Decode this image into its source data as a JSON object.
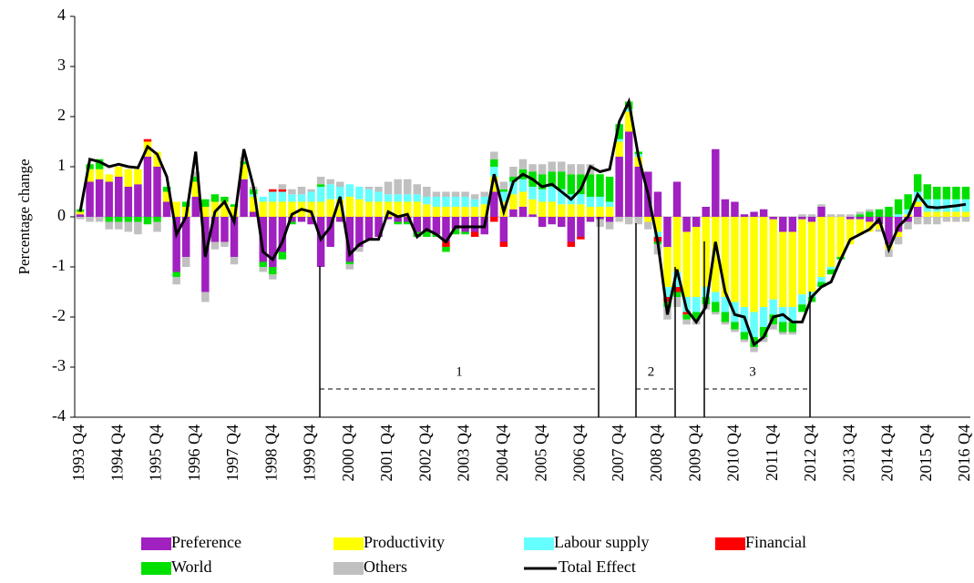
{
  "chart_data": {
    "type": "bar",
    "stacked": true,
    "ylabel": "Percentage change",
    "categories": [
      "1993 Q4",
      null,
      null,
      null,
      "1994 Q4",
      null,
      null,
      null,
      "1995 Q4",
      null,
      null,
      null,
      "1996 Q4",
      null,
      null,
      null,
      "1997 Q4",
      null,
      null,
      null,
      "1998 Q4",
      null,
      null,
      null,
      "1999 Q4",
      null,
      null,
      null,
      "2000 Q4",
      null,
      null,
      null,
      "2001 Q4",
      null,
      null,
      null,
      "2002 Q4",
      null,
      null,
      null,
      "2003 Q4",
      null,
      null,
      null,
      "2004 Q4",
      null,
      null,
      null,
      "2005 Q4",
      null,
      null,
      null,
      "2006 Q4",
      null,
      null,
      null,
      "2007 Q4",
      null,
      null,
      null,
      "2008 Q4",
      null,
      null,
      null,
      "2009 Q4",
      null,
      null,
      null,
      "2010 Q4",
      null,
      null,
      null,
      "2011 Q4",
      null,
      null,
      null,
      "2012 Q4",
      null,
      null,
      null,
      "2013 Q4",
      null,
      null,
      null,
      "2014 Q4",
      null,
      null,
      null,
      "2015 Q4",
      null,
      null,
      null,
      "2016 Q4"
    ],
    "ylim": [
      -4,
      4
    ],
    "yticks": [
      -4,
      -3,
      -2,
      -1,
      0,
      1,
      2,
      3,
      4
    ],
    "series": [
      {
        "name": "Preference",
        "color": "#a020c0",
        "values": [
          0.05,
          0.7,
          0.75,
          0.7,
          0.8,
          0.6,
          0.65,
          1.2,
          1.0,
          0.3,
          -1.1,
          -0.8,
          0.4,
          -1.5,
          -0.5,
          -0.5,
          -0.8,
          0.75,
          0.1,
          -0.9,
          -1.0,
          -0.7,
          -0.1,
          -0.1,
          -0.15,
          -1.0,
          -0.6,
          -0.1,
          -0.9,
          -0.6,
          -0.45,
          -0.4,
          -0.05,
          -0.1,
          -0.1,
          -0.3,
          -0.3,
          -0.35,
          -0.5,
          -0.25,
          -0.3,
          -0.3,
          -0.35,
          0.5,
          -0.5,
          0.15,
          0.2,
          0.05,
          -0.2,
          -0.15,
          -0.2,
          -0.5,
          -0.4,
          -0.1,
          -0.05,
          -0.1,
          1.2,
          1.7,
          1.0,
          0.9,
          0.5,
          -0.6,
          0.7,
          -0.3,
          -0.2,
          0.2,
          1.35,
          0.35,
          0.3,
          0.05,
          0.1,
          0.15,
          -0.05,
          -0.3,
          -0.3,
          -0.05,
          -0.1,
          0.2,
          0.0,
          0.0,
          -0.05,
          -0.05,
          -0.1,
          -0.15,
          -0.55,
          -0.3,
          -0.1,
          0.2,
          0.0,
          0.0,
          0.0,
          0.0,
          0.0
        ]
      },
      {
        "name": "Productivity",
        "color": "#ffff00",
        "values": [
          0.05,
          0.25,
          0.2,
          0.15,
          0.2,
          0.35,
          0.3,
          0.3,
          0.3,
          0.2,
          0.3,
          0.2,
          0.3,
          0.2,
          0.3,
          0.3,
          0.2,
          0.3,
          0.3,
          0.3,
          0.3,
          0.3,
          0.3,
          0.3,
          0.3,
          0.3,
          0.35,
          0.35,
          0.4,
          0.35,
          0.3,
          0.3,
          0.3,
          0.3,
          0.3,
          0.3,
          0.25,
          0.2,
          0.2,
          0.2,
          0.2,
          0.2,
          0.25,
          0.3,
          0.3,
          0.3,
          0.3,
          0.3,
          0.3,
          0.3,
          0.25,
          0.25,
          0.25,
          0.2,
          0.2,
          0.2,
          0.3,
          0.4,
          0.2,
          -0.1,
          -0.3,
          -0.8,
          -1.1,
          -1.3,
          -1.4,
          -1.4,
          -1.5,
          -1.6,
          -1.7,
          -1.8,
          -1.9,
          -1.8,
          -1.6,
          -1.5,
          -1.5,
          -1.5,
          -1.4,
          -1.2,
          -1.0,
          -0.8,
          -0.5,
          -0.3,
          -0.2,
          -0.1,
          -0.1,
          -0.1,
          0.05,
          0.1,
          0.1,
          0.1,
          0.1,
          0.1,
          0.1
        ]
      },
      {
        "name": "Labour supply",
        "color": "#66ffff",
        "values": [
          0,
          0,
          0,
          0,
          0,
          0,
          0,
          0,
          0,
          0,
          0,
          0,
          0,
          0,
          0,
          0,
          0,
          0,
          0.05,
          0.1,
          0.2,
          0.2,
          0.15,
          0.15,
          0.2,
          0.3,
          0.3,
          0.25,
          0.25,
          0.25,
          0.25,
          0.2,
          0.15,
          0.15,
          0.15,
          0.15,
          0.15,
          0.2,
          0.2,
          0.2,
          0.2,
          0.15,
          0.15,
          0.2,
          0.2,
          0.25,
          0.25,
          0.25,
          0.25,
          0.3,
          0.3,
          0.2,
          0.2,
          0.2,
          0.2,
          0.1,
          0.05,
          0.05,
          0.05,
          0.0,
          -0.1,
          -0.2,
          -0.3,
          -0.3,
          -0.3,
          -0.2,
          -0.2,
          -0.3,
          -0.4,
          -0.5,
          -0.5,
          -0.4,
          -0.3,
          -0.3,
          -0.3,
          -0.2,
          -0.1,
          -0.1,
          -0.05,
          0.0,
          0,
          0,
          0,
          0,
          0,
          0.05,
          0.1,
          0.2,
          0.25,
          0.25,
          0.25,
          0.25,
          0.25
        ]
      },
      {
        "name": "Financial",
        "color": "#ff0000",
        "values": [
          0,
          0,
          0,
          0,
          0,
          0,
          0,
          0.05,
          0,
          0,
          0,
          0,
          0,
          0,
          0,
          0,
          0,
          0,
          0,
          0,
          0.05,
          0.05,
          0,
          0,
          0,
          0,
          0,
          0,
          0,
          0,
          0,
          0,
          0,
          0,
          0,
          0,
          0,
          0,
          -0.1,
          0,
          0,
          -0.1,
          0,
          -0.1,
          -0.1,
          0,
          0,
          0,
          0,
          0,
          0,
          -0.1,
          -0.05,
          0,
          0,
          0,
          0,
          0,
          0,
          0,
          -0.1,
          -0.1,
          -0.1,
          -0.05,
          0,
          0,
          0,
          0,
          0,
          0,
          0,
          0,
          0,
          0,
          0,
          0,
          0,
          0,
          0,
          0,
          0,
          0,
          0,
          0,
          0,
          0,
          0,
          0,
          0,
          0,
          0,
          0,
          0
        ]
      },
      {
        "name": "World",
        "color": "#00e000",
        "values": [
          0.05,
          0.1,
          0.2,
          -0.1,
          -0.1,
          -0.1,
          -0.1,
          -0.15,
          -0.1,
          0.1,
          -0.1,
          0.1,
          0.1,
          0.15,
          0.15,
          0.1,
          0.05,
          0.05,
          0.1,
          -0.1,
          -0.15,
          -0.15,
          -0.05,
          0.0,
          0.0,
          0.05,
          0.0,
          0.0,
          -0.05,
          0.0,
          0.0,
          0.0,
          0.0,
          -0.05,
          -0.05,
          -0.1,
          -0.1,
          -0.05,
          -0.1,
          -0.1,
          -0.05,
          0.0,
          0.0,
          0.15,
          0.05,
          0.1,
          0.2,
          0.3,
          0.3,
          0.3,
          0.35,
          0.4,
          0.4,
          0.45,
          0.45,
          0.5,
          0.3,
          0.15,
          0.05,
          0.0,
          -0.05,
          -0.1,
          -0.1,
          -0.1,
          -0.15,
          -0.15,
          -0.2,
          -0.2,
          -0.15,
          -0.15,
          -0.2,
          -0.2,
          -0.2,
          -0.2,
          -0.2,
          -0.15,
          -0.1,
          -0.1,
          -0.1,
          -0.05,
          0.0,
          0.05,
          0.1,
          0.15,
          0.2,
          0.3,
          0.3,
          0.35,
          0.3,
          0.25,
          0.25,
          0.25,
          0.25
        ]
      },
      {
        "name": "Others",
        "color": "#c0c0c0",
        "values": [
          -0.05,
          -0.1,
          -0.1,
          -0.15,
          -0.15,
          -0.2,
          -0.25,
          0.0,
          -0.2,
          0.0,
          -0.15,
          -0.2,
          0.1,
          -0.2,
          -0.15,
          -0.1,
          -0.15,
          0.1,
          0.05,
          -0.1,
          -0.1,
          0.1,
          0.1,
          0.15,
          0.05,
          0.15,
          0.1,
          0.1,
          -0.1,
          -0.1,
          0.05,
          0.1,
          0.25,
          0.3,
          0.3,
          0.2,
          0.2,
          0.1,
          0.1,
          0.1,
          0.1,
          0.1,
          0.1,
          0.15,
          0.15,
          0.2,
          0.2,
          0.15,
          0.2,
          0.2,
          0.2,
          0.2,
          0.2,
          0.2,
          -0.15,
          -0.15,
          -0.1,
          -0.15,
          -0.15,
          -0.15,
          -0.2,
          -0.25,
          -0.2,
          -0.1,
          -0.1,
          -0.1,
          -0.05,
          -0.05,
          -0.05,
          -0.05,
          -0.1,
          -0.1,
          -0.1,
          -0.05,
          -0.05,
          0.05,
          0.05,
          0.05,
          0.05,
          0.05,
          0.05,
          0.05,
          0.05,
          -0.05,
          -0.15,
          -0.15,
          -0.15,
          -0.15,
          -0.15,
          -0.15,
          -0.1,
          -0.1,
          -0.1
        ]
      },
      {
        "name": "Total Effect",
        "color": "#000000",
        "type": "line",
        "values": [
          0.1,
          1.15,
          1.1,
          1.0,
          1.05,
          1.0,
          0.98,
          1.4,
          1.25,
          0.8,
          -0.35,
          0.0,
          1.3,
          -0.8,
          0.1,
          0.3,
          -0.1,
          1.35,
          0.6,
          -0.7,
          -0.85,
          -0.5,
          0.05,
          0.15,
          0.1,
          -0.45,
          -0.2,
          0.4,
          -0.75,
          -0.55,
          -0.45,
          -0.45,
          0.1,
          0.0,
          0.05,
          -0.4,
          -0.25,
          -0.35,
          -0.5,
          -0.2,
          -0.2,
          -0.2,
          -0.2,
          0.85,
          0.1,
          0.7,
          0.85,
          0.75,
          0.6,
          0.65,
          0.5,
          0.35,
          0.55,
          1.0,
          0.9,
          0.95,
          1.9,
          2.3,
          1.2,
          0.45,
          -0.5,
          -1.95,
          -1.05,
          -1.85,
          -2.1,
          -1.8,
          -0.5,
          -1.5,
          -1.95,
          -2.0,
          -2.55,
          -2.4,
          -2.0,
          -1.95,
          -2.1,
          -2.1,
          -1.6,
          -1.4,
          -1.3,
          -0.85,
          -0.45,
          -0.35,
          -0.25,
          -0.05,
          -0.65,
          -0.2,
          0.0,
          0.45,
          0.2,
          0.18,
          0.2,
          0.22,
          0.25
        ]
      }
    ],
    "annotations": [
      "1",
      "2",
      "3"
    ]
  }
}
